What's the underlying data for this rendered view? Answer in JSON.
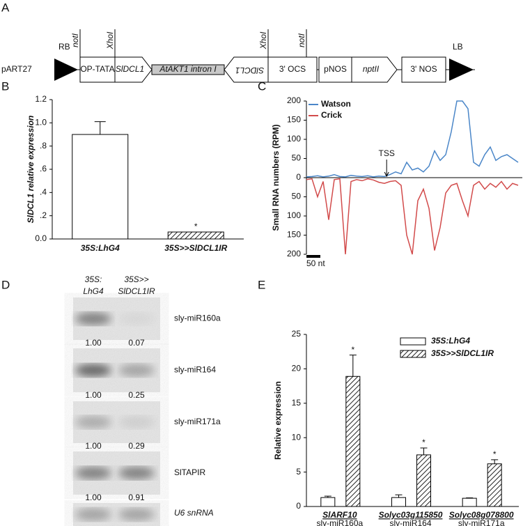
{
  "panel_labels": {
    "a": "A",
    "b": "B",
    "c": "C",
    "d": "D",
    "e": "E"
  },
  "construct": {
    "vector": "pART27",
    "left_border": "RB",
    "right_border": "LB",
    "sites": [
      "notI",
      "XhoI",
      "XhoI",
      "notI"
    ],
    "elements": [
      "OP-TATA",
      "SlDCL1",
      "AtAKT1 intron I",
      "SlDCL1",
      "3' OCS",
      "pNOS",
      "nptII",
      "3' NOS"
    ]
  },
  "chart_data": [
    {
      "type": "bar",
      "ylabel": "SlDCL1 relative expression",
      "categories": [
        "35S:LhG4",
        "35S>>SlDCL1IR"
      ],
      "values": [
        0.9,
        0.06
      ],
      "errors": [
        0.11,
        0
      ],
      "patterns": [
        "none",
        "hatched"
      ],
      "significance": [
        null,
        "*"
      ],
      "ylim": [
        0,
        1.2
      ],
      "yticks": [
        {
          "value": 0,
          "label": "0.0"
        },
        {
          "value": 0.2,
          "label": ".2"
        },
        {
          "value": 0.4,
          "label": ".4"
        },
        {
          "value": 0.6,
          "label": ".6"
        },
        {
          "value": 0.8,
          "label": ".8"
        },
        {
          "value": 1,
          "label": "1.0"
        },
        1.2
      ]
    },
    {
      "type": "line",
      "ylabel": "Small RNA numbers (RPM)",
      "legend": "top-left",
      "x": [
        0,
        20,
        40,
        60,
        80,
        100,
        120,
        140,
        160,
        180,
        200,
        220,
        240,
        260,
        280,
        300,
        320,
        340,
        360,
        380,
        400,
        420,
        440,
        460,
        480,
        500,
        520,
        540,
        560,
        580,
        600,
        620,
        640,
        660,
        680,
        700,
        720,
        740,
        760
      ],
      "xlim": [
        0,
        775
      ],
      "series": [
        {
          "name": "Watson",
          "color": "#4a86c8",
          "values": [
            2,
            3,
            5,
            2,
            4,
            8,
            3,
            2,
            6,
            4,
            3,
            5,
            2,
            4,
            3,
            8,
            15,
            10,
            40,
            20,
            25,
            15,
            30,
            70,
            45,
            60,
            120,
            200,
            200,
            180,
            40,
            30,
            60,
            80,
            45,
            55,
            60,
            50,
            40
          ]
        },
        {
          "name": "Crick",
          "color": "#d24b4b",
          "values": [
            -5,
            -3,
            -50,
            -10,
            -110,
            -5,
            -3,
            -200,
            -10,
            -5,
            -8,
            -3,
            -6,
            -12,
            -15,
            -10,
            -8,
            -20,
            -150,
            -200,
            -60,
            -30,
            -80,
            -190,
            -130,
            -40,
            -20,
            -15,
            -60,
            -100,
            -20,
            -10,
            -30,
            -15,
            -25,
            -10,
            -30,
            -15,
            -20
          ]
        }
      ],
      "ylim": [
        -200,
        200
      ],
      "yticks": [
        {
          "value": -200,
          "label": "200"
        },
        {
          "value": -150,
          "label": "150"
        },
        {
          "value": -100,
          "label": "100"
        },
        {
          "value": -50,
          "label": "50"
        },
        0,
        50,
        100,
        150,
        200
      ],
      "annotations": [
        {
          "text": "TSS",
          "x": 288
        }
      ],
      "scale_bar": {
        "label": "50 nt",
        "length": 50
      }
    },
    {
      "type": "grouped-bar",
      "ylabel": "Relative expression",
      "legend": "top-right",
      "categories": [
        "SlARF10",
        "Solyc03g115850",
        "Solyc08g078800"
      ],
      "category_sublabels": [
        "sly-miR160a",
        "sly-miR164",
        "sly-miR171a"
      ],
      "series": [
        {
          "name": "35S:LhG4",
          "pattern": "none",
          "values": [
            1.3,
            1.3,
            1.2
          ],
          "errors": [
            0.2,
            0.4,
            0.05
          ]
        },
        {
          "name": "35S>>SlDCL1IR",
          "pattern": "hatched",
          "values": [
            18.9,
            7.5,
            6.2
          ],
          "errors": [
            3.1,
            1.0,
            0.6
          ],
          "significance": [
            "*",
            "*",
            "*"
          ]
        }
      ],
      "ylim": [
        0,
        25
      ],
      "yticks": [
        0,
        5,
        10,
        15,
        20,
        25
      ]
    }
  ],
  "blot": {
    "columns": [
      [
        "35S:",
        "LhG4"
      ],
      [
        "35S>>",
        "SlDCL1IR"
      ]
    ],
    "rows": [
      {
        "probe": "sly-miR160a",
        "values": [
          "1.00",
          "0.07"
        ]
      },
      {
        "probe": "sly-miR164",
        "values": [
          "1.00",
          "0.25"
        ]
      },
      {
        "probe": "sly-miR171a",
        "values": [
          "1.00",
          "0.29"
        ]
      },
      {
        "probe": "SlTAPIR",
        "values": [
          "1.00",
          "0.91"
        ]
      },
      {
        "probe": "U6 snRNA"
      }
    ]
  }
}
